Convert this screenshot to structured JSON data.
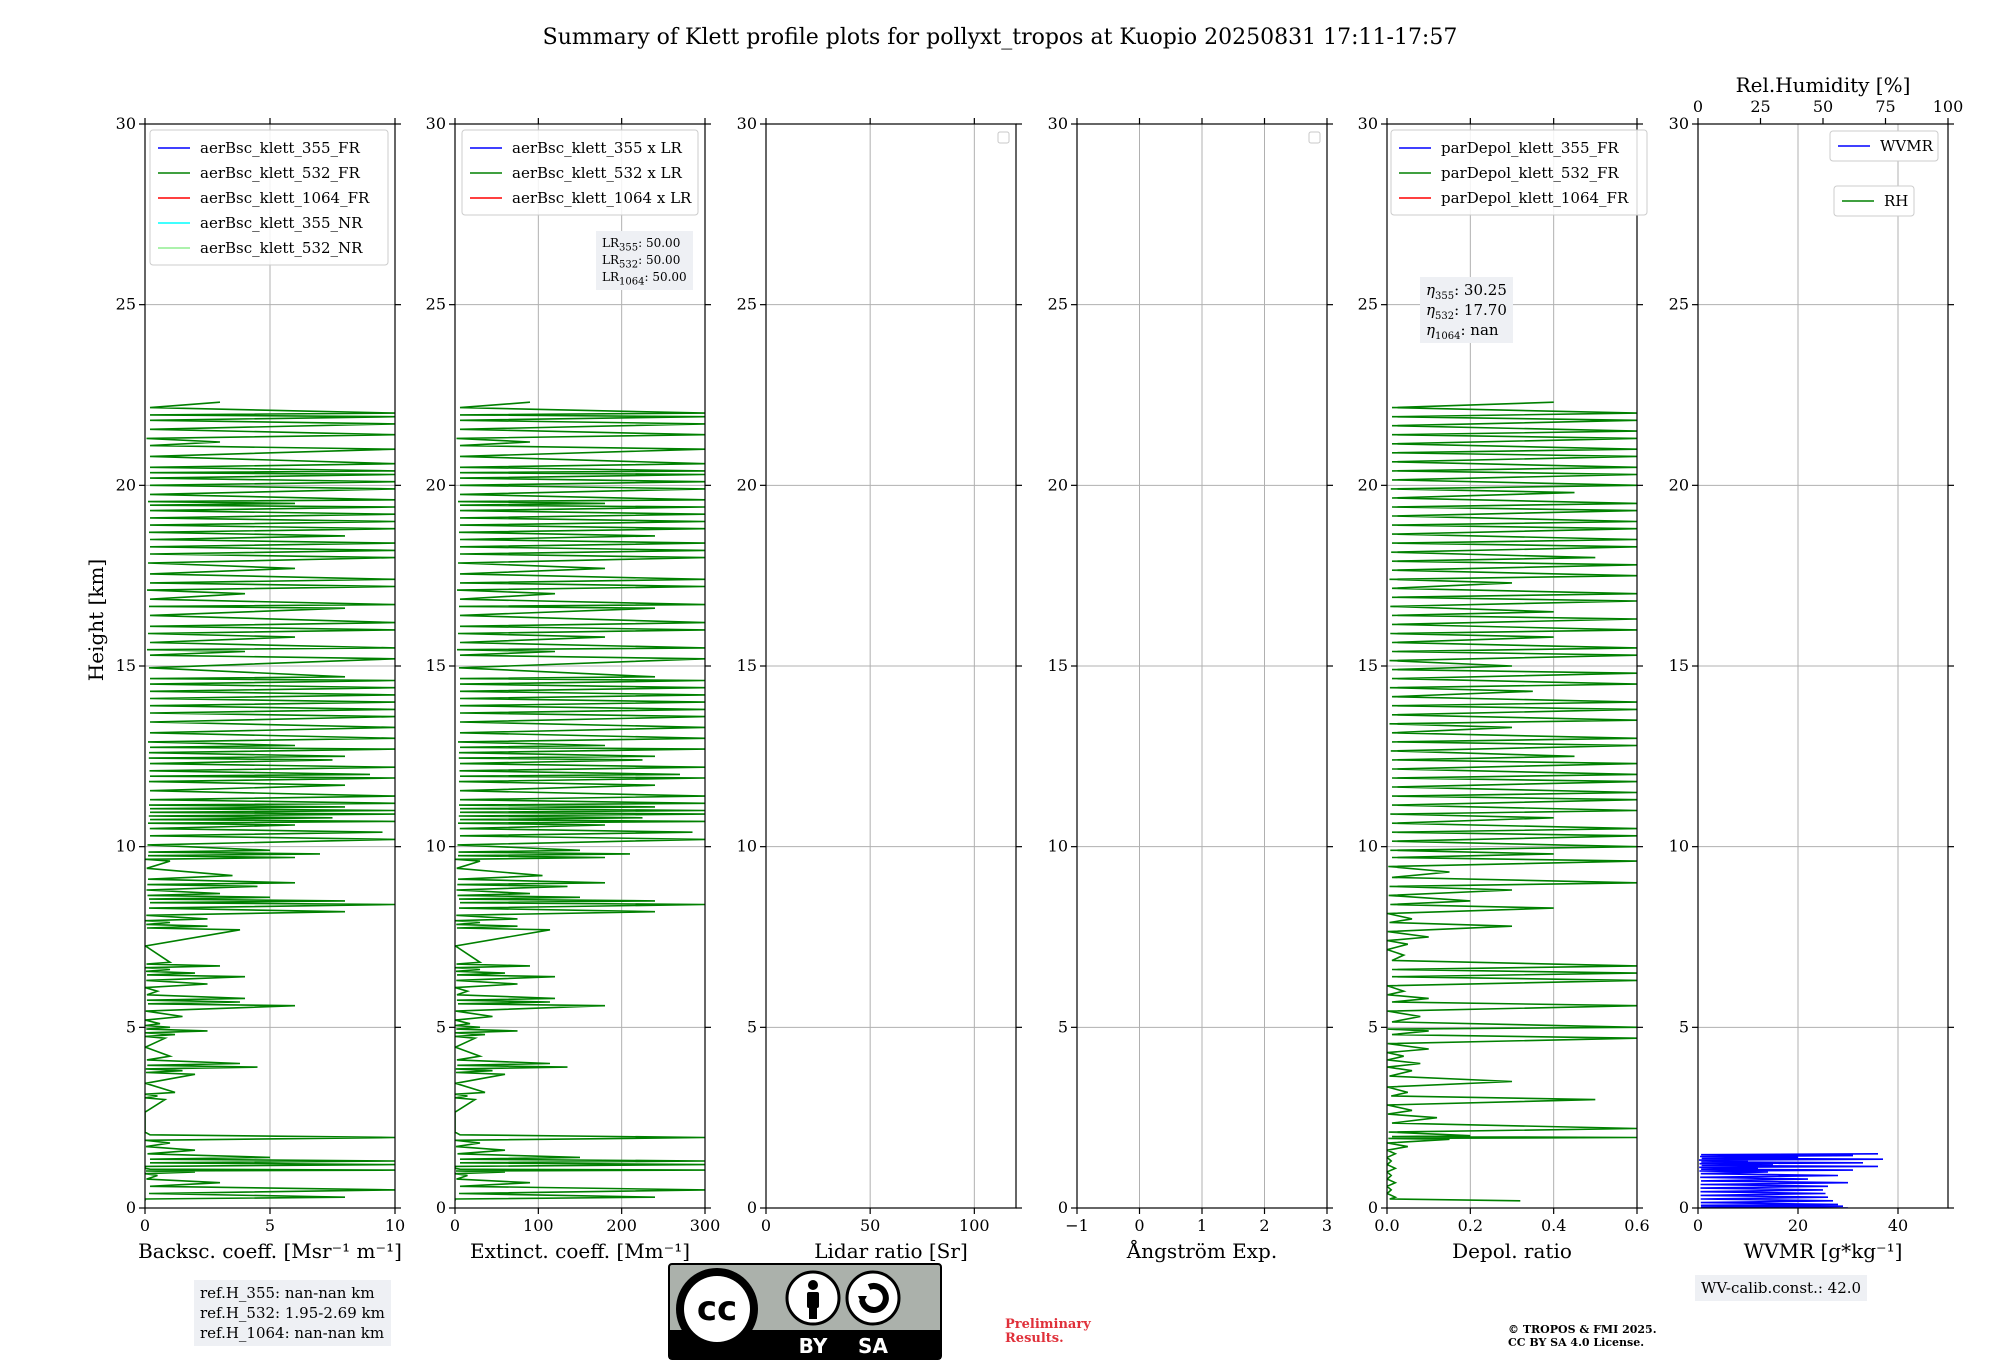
{
  "chart_data": {
    "type": "line",
    "title": "Summary of Klett profile plots for pollyxt_tropos at Kuopio 20250831 17:11-17:57",
    "ylabel": "Height [km]",
    "ylim": [
      0,
      30
    ],
    "yticks": [
      0,
      5,
      10,
      15,
      20,
      25,
      30
    ],
    "grid": true,
    "panels": [
      {
        "id": "bsc",
        "xlabel": "Backsc. coeff. [Msr⁻¹ m⁻¹]",
        "xlim": [
          0,
          10
        ],
        "xticks": [
          "0",
          "5",
          "10"
        ],
        "legend_position": "upper-right",
        "legend": [
          {
            "name": "aerBsc_klett_355_FR",
            "color": "#0000ff"
          },
          {
            "name": "aerBsc_klett_532_FR",
            "color": "#008000"
          },
          {
            "name": "aerBsc_klett_1064_FR",
            "color": "#ff0000"
          },
          {
            "name": "aerBsc_klett_355_NR",
            "color": "#00ffff"
          },
          {
            "name": "aerBsc_klett_532_NR",
            "color": "#90ee90"
          }
        ],
        "series": [
          {
            "name": "aerBsc_klett_532_FR",
            "color": "#008000",
            "h": [
              0.2,
              0.3,
              0.5,
              0.7,
              0.9,
              1.0,
              1.05,
              1.1,
              1.2,
              1.3,
              1.4,
              1.6,
              1.8,
              1.95,
              2.1,
              2.3,
              3.0,
              3.1,
              3.2,
              3.7,
              3.8,
              3.9,
              4.0,
              4.2,
              4.7,
              4.8,
              4.9,
              5.0,
              5.1,
              5.3,
              5.6,
              5.7,
              5.8,
              6.0,
              6.2,
              6.4,
              6.5,
              6.6,
              6.7,
              6.8,
              7.7,
              7.8,
              7.9,
              8.0,
              8.2,
              8.4,
              8.5,
              8.6,
              8.7,
              8.9,
              9.0,
              9.2,
              9.6,
              9.7,
              9.8,
              9.9,
              10.2,
              10.4,
              10.6,
              10.7,
              10.8,
              10.9,
              11.0,
              11.1,
              11.2,
              11.4,
              11.7,
              11.9,
              12.0,
              12.2,
              12.4,
              12.5,
              12.7,
              12.8,
              13.0,
              13.3,
              13.6,
              13.8,
              14.0,
              14.2,
              14.4,
              14.6,
              14.7,
              15.2,
              15.4,
              15.5,
              15.8,
              16.0,
              16.2,
              16.6,
              16.7,
              17.0,
              17.2,
              17.4,
              17.7,
              18.0,
              18.2,
              18.4,
              18.6,
              18.8,
              19.0,
              19.2,
              19.4,
              19.5,
              19.6,
              19.9,
              20.1,
              20.3,
              20.4,
              20.6,
              21.0,
              21.2,
              21.4,
              21.7,
              21.9,
              22.0,
              22.3
            ],
            "v": [
              0.0,
              8.0,
              10.0,
              3.0,
              0.5,
              2.0,
              10.0,
              0.0,
              10.0,
              10.0,
              5.0,
              2.0,
              1.0,
              10.0,
              0.0,
              0.0,
              0.8,
              0.5,
              1.2,
              2.0,
              1.5,
              4.5,
              3.8,
              1.0,
              0.8,
              1.2,
              2.5,
              1.0,
              0.6,
              1.5,
              6.0,
              3.8,
              4.0,
              0.5,
              2.5,
              4.0,
              2.0,
              1.0,
              3.0,
              1.0,
              3.8,
              2.5,
              1.0,
              2.5,
              8.0,
              10.0,
              8.0,
              5.0,
              3.0,
              4.5,
              6.0,
              3.5,
              1.0,
              6.0,
              7.0,
              5.0,
              10.0,
              9.5,
              6.0,
              10.0,
              7.5,
              10.0,
              10.0,
              8.0,
              10.0,
              10.0,
              8.0,
              10.0,
              9.0,
              10.0,
              7.5,
              8.0,
              10.0,
              6.0,
              10.0,
              10.0,
              10.0,
              10.0,
              10.0,
              10.0,
              10.0,
              10.0,
              8.0,
              10.0,
              4.0,
              10.0,
              6.0,
              10.0,
              10.0,
              8.0,
              10.0,
              4.0,
              10.0,
              10.0,
              6.0,
              10.0,
              10.0,
              10.0,
              8.0,
              10.0,
              10.0,
              10.0,
              10.0,
              6.0,
              10.0,
              10.0,
              10.0,
              10.0,
              10.0,
              10.0,
              10.0,
              3.0,
              10.0,
              10.0,
              10.0,
              10.0,
              3.0
            ]
          }
        ],
        "info_box": [
          "ref.H_355: nan-nan km",
          "ref.H_532: 1.95-2.69 km",
          "ref.H_1064: nan-nan km"
        ]
      },
      {
        "id": "ext",
        "xlabel": "Extinct. coeff. [Mm⁻¹]",
        "xlim": [
          0,
          300
        ],
        "xticks": [
          "0",
          "100",
          "200",
          "300"
        ],
        "legend_position": "upper-right",
        "legend": [
          {
            "name": "aerBsc_klett_355 x LR",
            "color": "#0000ff"
          },
          {
            "name": "aerBsc_klett_532 x LR",
            "color": "#008000"
          },
          {
            "name": "aerBsc_klett_1064 x LR",
            "color": "#ff0000"
          }
        ],
        "series": [
          {
            "name": "aerBsc_klett_532 x LR",
            "color": "#008000",
            "h": [
              0.2,
              0.3,
              0.5,
              0.7,
              0.9,
              1.0,
              1.05,
              1.1,
              1.2,
              1.3,
              1.4,
              1.6,
              1.8,
              1.95,
              2.1,
              2.3,
              3.0,
              3.1,
              3.2,
              3.7,
              3.8,
              3.9,
              4.0,
              4.2,
              4.7,
              4.8,
              4.9,
              5.0,
              5.1,
              5.3,
              5.6,
              5.7,
              5.8,
              6.0,
              6.2,
              6.4,
              6.5,
              6.6,
              6.7,
              6.8,
              7.7,
              7.8,
              7.9,
              8.0,
              8.2,
              8.4,
              8.5,
              8.6,
              8.7,
              8.9,
              9.0,
              9.2,
              9.6,
              9.7,
              9.8,
              9.9,
              10.2,
              10.4,
              10.6,
              10.7,
              10.8,
              10.9,
              11.0,
              11.1,
              11.2,
              11.4,
              11.7,
              11.9,
              12.0,
              12.2,
              12.4,
              12.5,
              12.7,
              12.8,
              13.0,
              13.3,
              13.6,
              13.8,
              14.0,
              14.2,
              14.4,
              14.6,
              14.7,
              15.2,
              15.4,
              15.5,
              15.8,
              16.0,
              16.2,
              16.6,
              16.7,
              17.0,
              17.2,
              17.4,
              17.7,
              18.0,
              18.2,
              18.4,
              18.6,
              18.8,
              19.0,
              19.2,
              19.4,
              19.5,
              19.6,
              19.9,
              20.1,
              20.3,
              20.4,
              20.6,
              21.0,
              21.2,
              21.4,
              21.7,
              21.9,
              22.0,
              22.3
            ],
            "v": [
              0,
              240,
              300,
              90,
              15,
              60,
              300,
              0,
              300,
              300,
              150,
              60,
              30,
              300,
              0,
              0,
              24,
              15,
              36,
              60,
              45,
              135,
              114,
              30,
              24,
              36,
              75,
              30,
              18,
              45,
              180,
              114,
              120,
              15,
              75,
              120,
              60,
              30,
              90,
              30,
              114,
              75,
              30,
              75,
              240,
              300,
              240,
              150,
              90,
              135,
              180,
              105,
              30,
              180,
              210,
              150,
              300,
              285,
              180,
              300,
              225,
              300,
              300,
              240,
              300,
              300,
              240,
              300,
              270,
              300,
              225,
              240,
              300,
              180,
              300,
              300,
              300,
              300,
              300,
              300,
              300,
              300,
              240,
              300,
              120,
              300,
              180,
              300,
              300,
              240,
              300,
              120,
              300,
              300,
              180,
              300,
              300,
              300,
              240,
              300,
              300,
              300,
              300,
              180,
              300,
              300,
              300,
              300,
              300,
              300,
              300,
              90,
              300,
              300,
              300,
              300,
              90
            ]
          }
        ],
        "info_box": [
          "LR355: 50.00",
          "LR532: 50.00",
          "LR1064: 50.00"
        ]
      },
      {
        "id": "lr",
        "xlabel": "Lidar ratio [Sr]",
        "xlim": [
          0,
          120
        ],
        "xticks": [
          "0",
          "50",
          "100"
        ],
        "legend_position": "upper-right",
        "legend": [],
        "series": []
      },
      {
        "id": "ang",
        "xlabel": "Ångström Exp.",
        "xlim": [
          -1,
          3
        ],
        "xticks": [
          "−1",
          "0",
          "1",
          "2",
          "3"
        ],
        "legend_position": "upper-right",
        "legend": [],
        "series": []
      },
      {
        "id": "depol",
        "xlabel": "Depol. ratio",
        "xlim": [
          0,
          0.6
        ],
        "xticks": [
          "0.0",
          "0.2",
          "0.4",
          "0.6"
        ],
        "legend_position": "upper-left",
        "legend": [
          {
            "name": "parDepol_klett_355_FR",
            "color": "#0000ff"
          },
          {
            "name": "parDepol_klett_532_FR",
            "color": "#008000"
          },
          {
            "name": "parDepol_klett_1064_FR",
            "color": "#ff0000"
          }
        ],
        "series": [
          {
            "name": "parDepol_klett_532_FR",
            "color": "#008000",
            "h": [
              0.2,
              0.3,
              0.5,
              0.7,
              0.9,
              1.1,
              1.3,
              1.5,
              1.7,
              1.9,
              1.95,
              2.0,
              2.2,
              2.5,
              2.7,
              3.0,
              3.2,
              3.5,
              3.8,
              4.0,
              4.2,
              4.4,
              4.7,
              4.9,
              5.0,
              5.3,
              5.6,
              5.8,
              6.0,
              6.3,
              6.5,
              6.7,
              7.0,
              7.3,
              7.5,
              7.8,
              8.0,
              8.3,
              8.5,
              8.8,
              9.0,
              9.3,
              9.6,
              9.8,
              10.0,
              10.3,
              10.5,
              10.8,
              11.0,
              11.3,
              11.5,
              11.8,
              12.0,
              12.3,
              12.5,
              12.8,
              13.0,
              13.3,
              13.5,
              13.8,
              14.0,
              14.3,
              14.5,
              14.8,
              15.0,
              15.3,
              15.5,
              15.8,
              16.0,
              16.3,
              16.5,
              16.8,
              17.0,
              17.3,
              17.5,
              17.8,
              18.0,
              18.3,
              18.5,
              18.8,
              19.0,
              19.3,
              19.5,
              19.8,
              20.0,
              20.3,
              20.5,
              20.8,
              21.0,
              21.3,
              21.5,
              21.8,
              22.0,
              22.3
            ],
            "v": [
              0.32,
              0.02,
              0.01,
              0.02,
              0.01,
              0.02,
              0.01,
              0.02,
              0.05,
              0.15,
              0.6,
              0.2,
              0.6,
              0.12,
              0.06,
              0.5,
              0.05,
              0.3,
              0.06,
              0.08,
              0.04,
              0.1,
              0.6,
              0.1,
              0.6,
              0.08,
              0.6,
              0.1,
              0.04,
              0.6,
              0.6,
              0.6,
              0.04,
              0.05,
              0.1,
              0.3,
              0.06,
              0.4,
              0.2,
              0.3,
              0.6,
              0.15,
              0.6,
              0.4,
              0.6,
              0.6,
              0.6,
              0.4,
              0.6,
              0.6,
              0.6,
              0.6,
              0.6,
              0.6,
              0.45,
              0.6,
              0.6,
              0.3,
              0.6,
              0.6,
              0.6,
              0.35,
              0.6,
              0.6,
              0.3,
              0.6,
              0.6,
              0.4,
              0.6,
              0.6,
              0.4,
              0.6,
              0.6,
              0.3,
              0.6,
              0.6,
              0.5,
              0.6,
              0.6,
              0.6,
              0.6,
              0.6,
              0.6,
              0.45,
              0.6,
              0.6,
              0.6,
              0.6,
              0.6,
              0.6,
              0.6,
              0.6,
              0.6,
              0.4
            ]
          }
        ],
        "info_box": [
          "η355: 30.25",
          "η532: 17.70",
          "η1064: nan"
        ]
      },
      {
        "id": "wv",
        "xlabel": "WVMR [g*kg⁻¹]",
        "xlim": [
          0,
          50
        ],
        "xticks": [
          "0",
          "20",
          "40"
        ],
        "top_axis": {
          "label": "Rel.Humidity [%]",
          "lim": [
            0,
            100
          ],
          "ticks": [
            "0",
            "25",
            "50",
            "75",
            "100"
          ]
        },
        "legend_position": "upper-right",
        "legend": [
          {
            "name": "WVMR",
            "color": "#0000ff"
          },
          {
            "name": "RH",
            "color": "#008000"
          }
        ],
        "series": [
          {
            "name": "WVMR",
            "color": "#0000ff",
            "h": [
              0.0,
              0.05,
              0.1,
              0.2,
              0.3,
              0.4,
              0.5,
              0.6,
              0.7,
              0.8,
              0.9,
              1.0,
              1.05,
              1.1,
              1.15,
              1.2,
              1.25,
              1.3,
              1.35,
              1.4,
              1.45,
              1.5
            ],
            "v": [
              30.0,
              29.0,
              28.0,
              27.0,
              26.0,
              25.5,
              25.0,
              26.0,
              30.0,
              22.0,
              28.0,
              14.0,
              31.0,
              12.0,
              36.0,
              15.0,
              33.0,
              10.0,
              37.0,
              20.0,
              31.0,
              36.0
            ]
          }
        ],
        "info_box": [
          "WV-calib.const.: 42.0"
        ]
      }
    ]
  },
  "footer": {
    "preliminary_line1": "Preliminary",
    "preliminary_line2": "Results.",
    "copyright_line1": "© TROPOS & FMI 2025.",
    "copyright_line2": "CC BY SA 4.0 License.",
    "cc_logo": {
      "text_cc": "cc",
      "text_by": "BY",
      "text_sa": "SA"
    }
  }
}
